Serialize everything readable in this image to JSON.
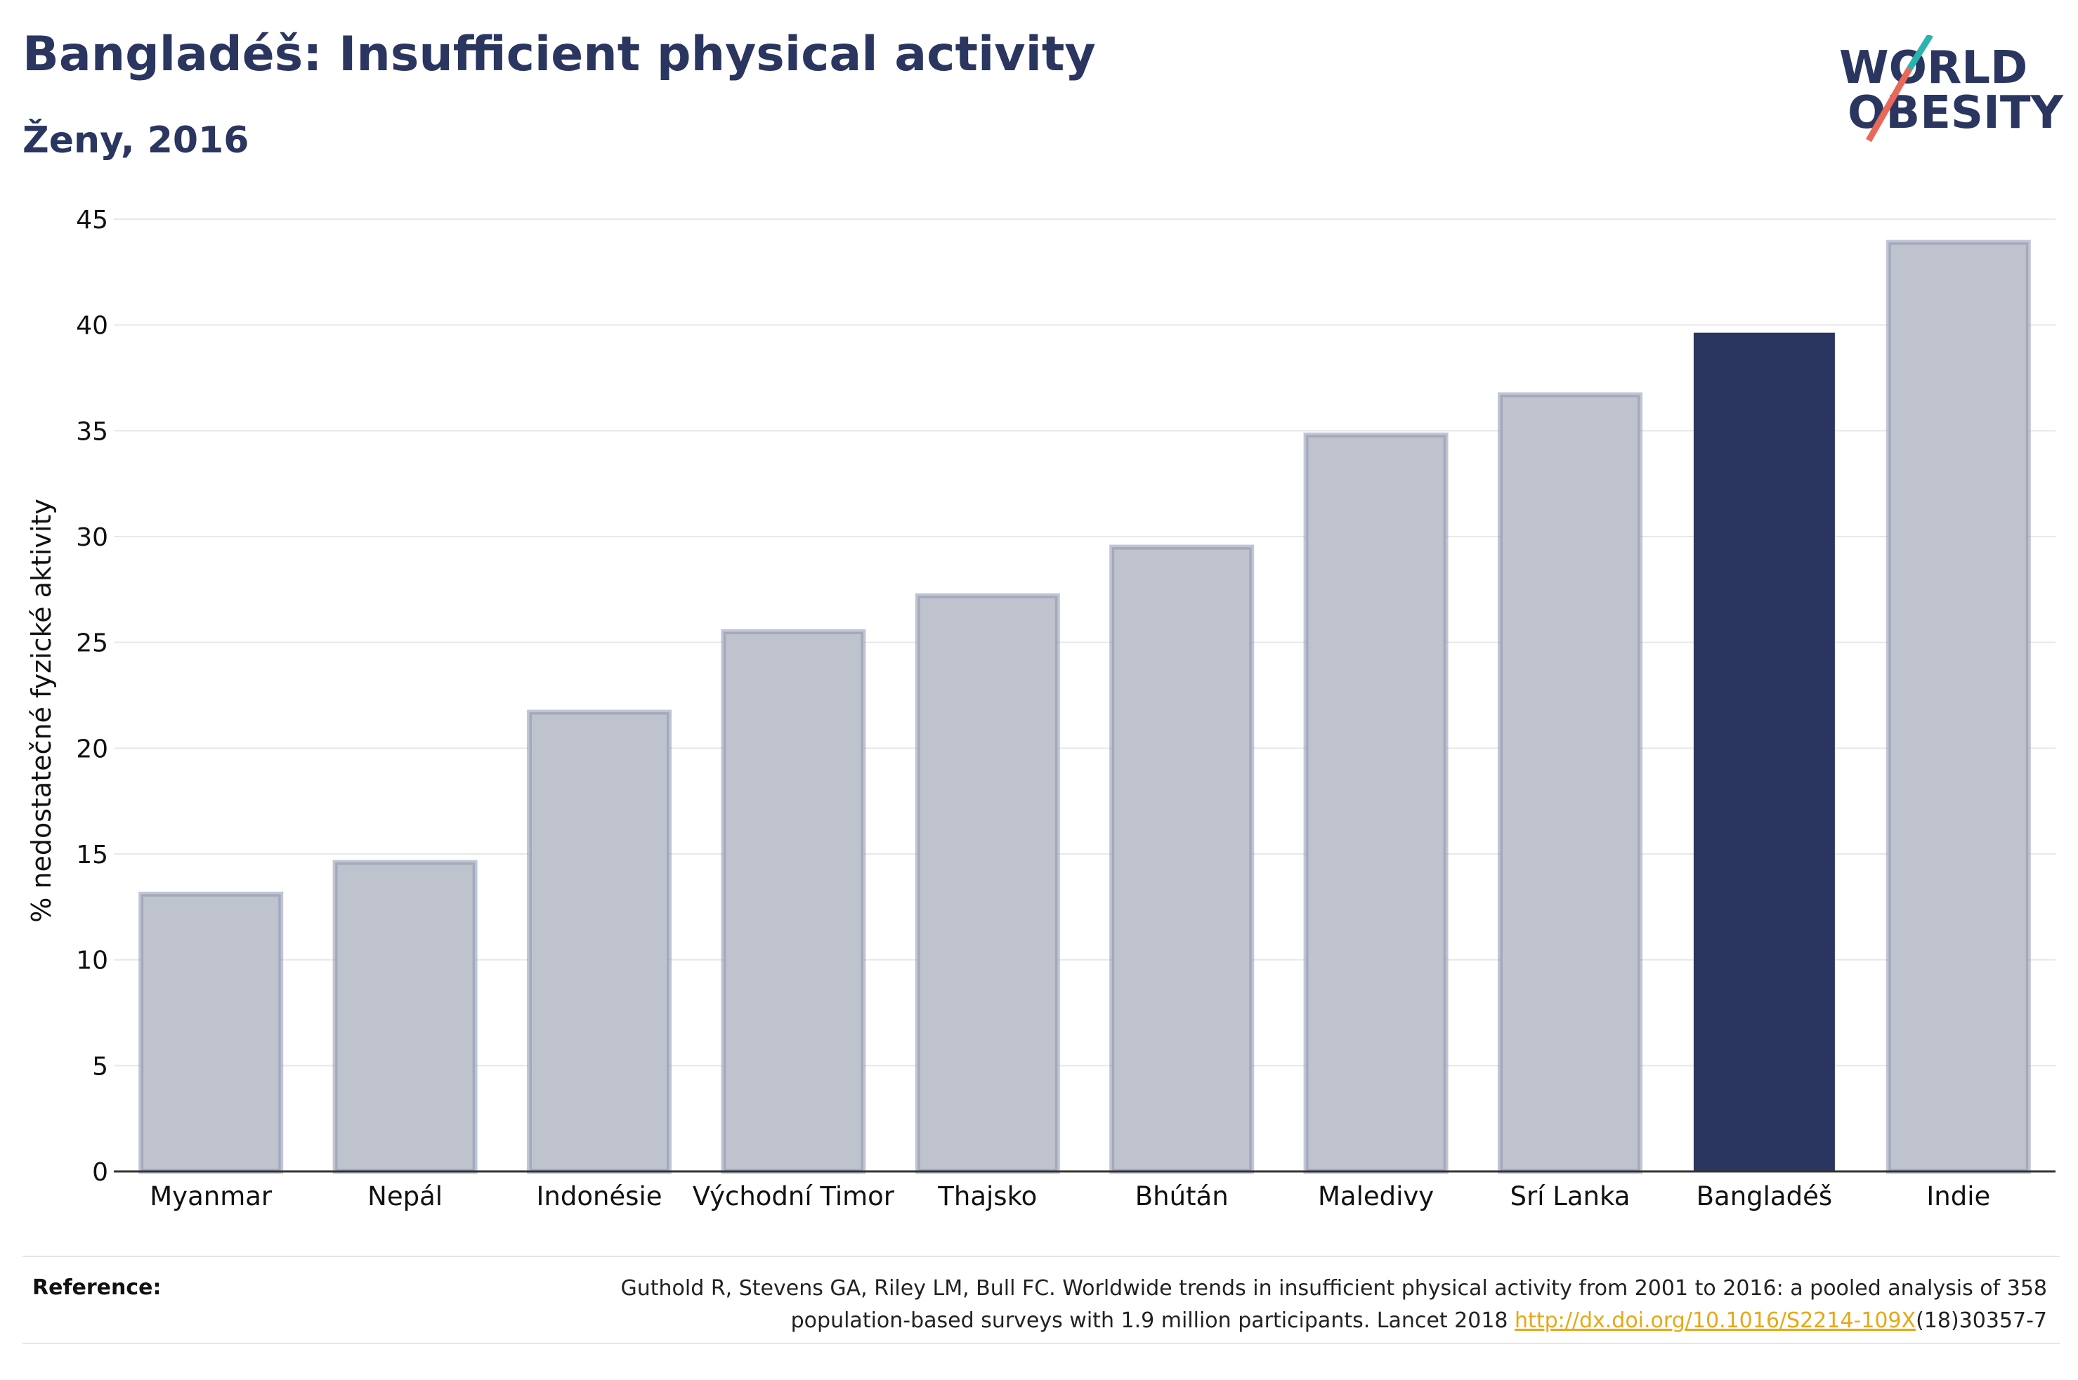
{
  "header": {
    "title": "Bangladéš: Insufficient physical activity",
    "subtitle": "Ženy, 2016"
  },
  "logo": {
    "line1": "WORLD",
    "line2": "OBESITY",
    "slash_colors": [
      "#2ab3b1",
      "#e8685a"
    ]
  },
  "colors": {
    "bar_default": "#bfc3ce",
    "bar_stroke": "#8e95ae",
    "bar_highlight": "#2a3560",
    "title": "#2a3560",
    "link": "#e6a817"
  },
  "chart_data": {
    "type": "bar",
    "title": "Bangladéš: Insufficient physical activity",
    "subtitle": "Ženy, 2016",
    "xlabel": "",
    "ylabel": "% nedostatečné fyzické aktivity",
    "ylim": [
      0,
      45
    ],
    "yticks": [
      0,
      5,
      10,
      15,
      20,
      25,
      30,
      35,
      40,
      45
    ],
    "grid": true,
    "categories": [
      "Myanmar",
      "Nepál",
      "Indonésie",
      "Východní Timor",
      "Thajsko",
      "Bhútán",
      "Maledivy",
      "Srí Lanka",
      "Bangladéš",
      "Indie"
    ],
    "values": [
      13.1,
      14.6,
      21.7,
      25.5,
      27.2,
      29.5,
      34.8,
      36.7,
      39.6,
      43.9
    ],
    "highlight": "Bangladéš"
  },
  "footer": {
    "reference_label": "Reference:",
    "reference_text_1": "Guthold R, Stevens GA, Riley LM, Bull FC. Worldwide trends in insufficient physical activity from 2001 to 2016: a pooled analysis of 358 population-based surveys with 1.9 million participants. Lancet 2018 ",
    "reference_link": "http://dx.doi.org/10.1016/S2214-109X",
    "reference_text_2": "(18)30357-7"
  }
}
